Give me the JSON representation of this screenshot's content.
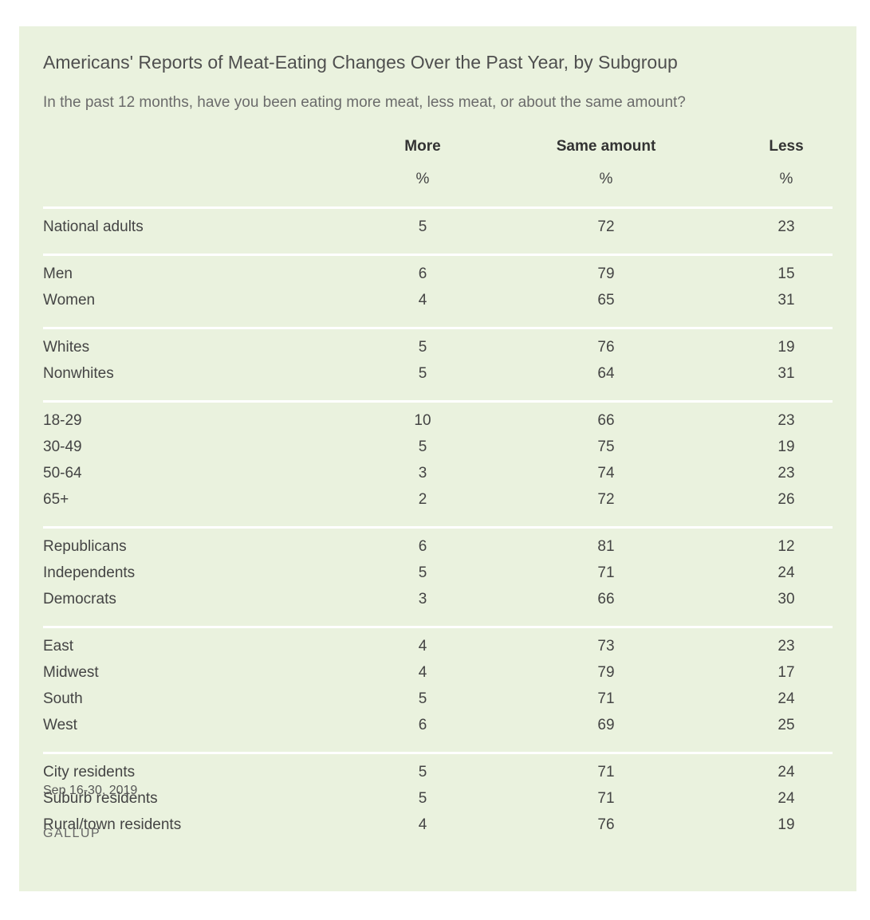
{
  "title": "Americans' Reports of Meat-Eating Changes Over the Past Year, by Subgroup",
  "subtitle": "In the past 12 months, have you been eating more meat, less meat, or about the same amount?",
  "chart_data": {
    "type": "table",
    "columns": [
      "More",
      "Same amount",
      "Less"
    ],
    "unit_row": [
      "%",
      "%",
      "%"
    ],
    "groups": [
      [
        {
          "label": "National adults",
          "values": [
            5,
            72,
            23
          ]
        }
      ],
      [
        {
          "label": "Men",
          "values": [
            6,
            79,
            15
          ]
        },
        {
          "label": "Women",
          "values": [
            4,
            65,
            31
          ]
        }
      ],
      [
        {
          "label": "Whites",
          "values": [
            5,
            76,
            19
          ]
        },
        {
          "label": "Nonwhites",
          "values": [
            5,
            64,
            31
          ]
        }
      ],
      [
        {
          "label": "18-29",
          "values": [
            10,
            66,
            23
          ]
        },
        {
          "label": "30-49",
          "values": [
            5,
            75,
            19
          ]
        },
        {
          "label": "50-64",
          "values": [
            3,
            74,
            23
          ]
        },
        {
          "label": "65+",
          "values": [
            2,
            72,
            26
          ]
        }
      ],
      [
        {
          "label": "Republicans",
          "values": [
            6,
            81,
            12
          ]
        },
        {
          "label": "Independents",
          "values": [
            5,
            71,
            24
          ]
        },
        {
          "label": "Democrats",
          "values": [
            3,
            66,
            30
          ]
        }
      ],
      [
        {
          "label": "East",
          "values": [
            4,
            73,
            23
          ]
        },
        {
          "label": "Midwest",
          "values": [
            4,
            79,
            17
          ]
        },
        {
          "label": "South",
          "values": [
            5,
            71,
            24
          ]
        },
        {
          "label": "West",
          "values": [
            6,
            69,
            25
          ]
        }
      ],
      [
        {
          "label": "City residents",
          "values": [
            5,
            71,
            24
          ]
        },
        {
          "label": "Suburb residents",
          "values": [
            5,
            71,
            24
          ]
        },
        {
          "label": "Rural/town residents",
          "values": [
            4,
            76,
            19
          ]
        }
      ]
    ]
  },
  "footer": {
    "date": "Sep 16-30, 2019",
    "source": "GALLUP"
  },
  "colors": {
    "background": "#eaf2de",
    "rule": "#ffffff",
    "text": "#444444"
  }
}
